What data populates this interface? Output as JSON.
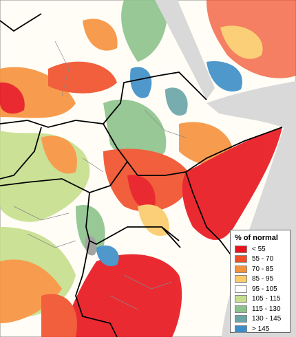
{
  "legend": {
    "title": "% of normal",
    "items": [
      {
        "label": "< 55",
        "color": "#e8141c"
      },
      {
        "label": "55 - 70",
        "color": "#f04e28"
      },
      {
        "label": "70 - 85",
        "color": "#f7923c"
      },
      {
        "label": "85 - 95",
        "color": "#fbcb6a"
      },
      {
        "label": "95 - 105",
        "color": "#ffffff"
      },
      {
        "label": "105 - 115",
        "color": "#c6df8c"
      },
      {
        "label": "115 - 130",
        "color": "#8cc38c"
      },
      {
        "label": "130 - 145",
        "color": "#6aa5a8"
      },
      {
        "label": "> 145",
        "color": "#3b8ec8"
      }
    ]
  }
}
